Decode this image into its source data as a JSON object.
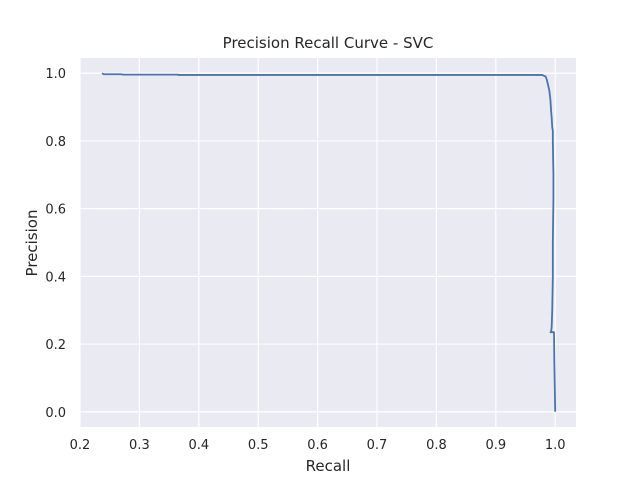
{
  "chart_data": {
    "type": "line",
    "title": "Precision Recall Curve - SVC",
    "xlabel": "Recall",
    "ylabel": "Precision",
    "xlim": [
      0.2,
      1.035
    ],
    "ylim": [
      -0.045,
      1.045
    ],
    "xticks": [
      0.2,
      0.3,
      0.4,
      0.5,
      0.6,
      0.7,
      0.8,
      0.9,
      1.0
    ],
    "xtick_labels": [
      "0.2",
      "0.3",
      "0.4",
      "0.5",
      "0.6",
      "0.7",
      "0.8",
      "0.9",
      "1.0"
    ],
    "yticks": [
      0.0,
      0.2,
      0.4,
      0.6,
      0.8,
      1.0
    ],
    "ytick_labels": [
      "0.0",
      "0.2",
      "0.4",
      "0.6",
      "0.8",
      "1.0"
    ],
    "grid": true,
    "legend": "none",
    "colors": {
      "plot_background": "#eaeaf2",
      "grid": "#ffffff",
      "line": "#4c72b0",
      "text": "#262626"
    },
    "series": [
      {
        "x": [
          0.237,
          0.24,
          0.27,
          0.272,
          0.365,
          0.366,
          0.5,
          0.7,
          0.9,
          0.978,
          0.984,
          0.986,
          0.988,
          0.99,
          0.992,
          0.993,
          0.994,
          0.995,
          0.996,
          0.996,
          0.997,
          0.997,
          0.997,
          0.996,
          0.996,
          0.995,
          0.994,
          0.993,
          0.992,
          0.998,
          0.9985,
          1.0
        ],
        "y": [
          1.0,
          0.997,
          0.997,
          0.996,
          0.996,
          0.995,
          0.995,
          0.995,
          0.995,
          0.995,
          0.99,
          0.98,
          0.965,
          0.95,
          0.92,
          0.89,
          0.87,
          0.84,
          0.83,
          0.8,
          0.7,
          0.64,
          0.63,
          0.5,
          0.4,
          0.3,
          0.25,
          0.235,
          0.235,
          0.235,
          0.15,
          0.0
        ]
      }
    ]
  }
}
